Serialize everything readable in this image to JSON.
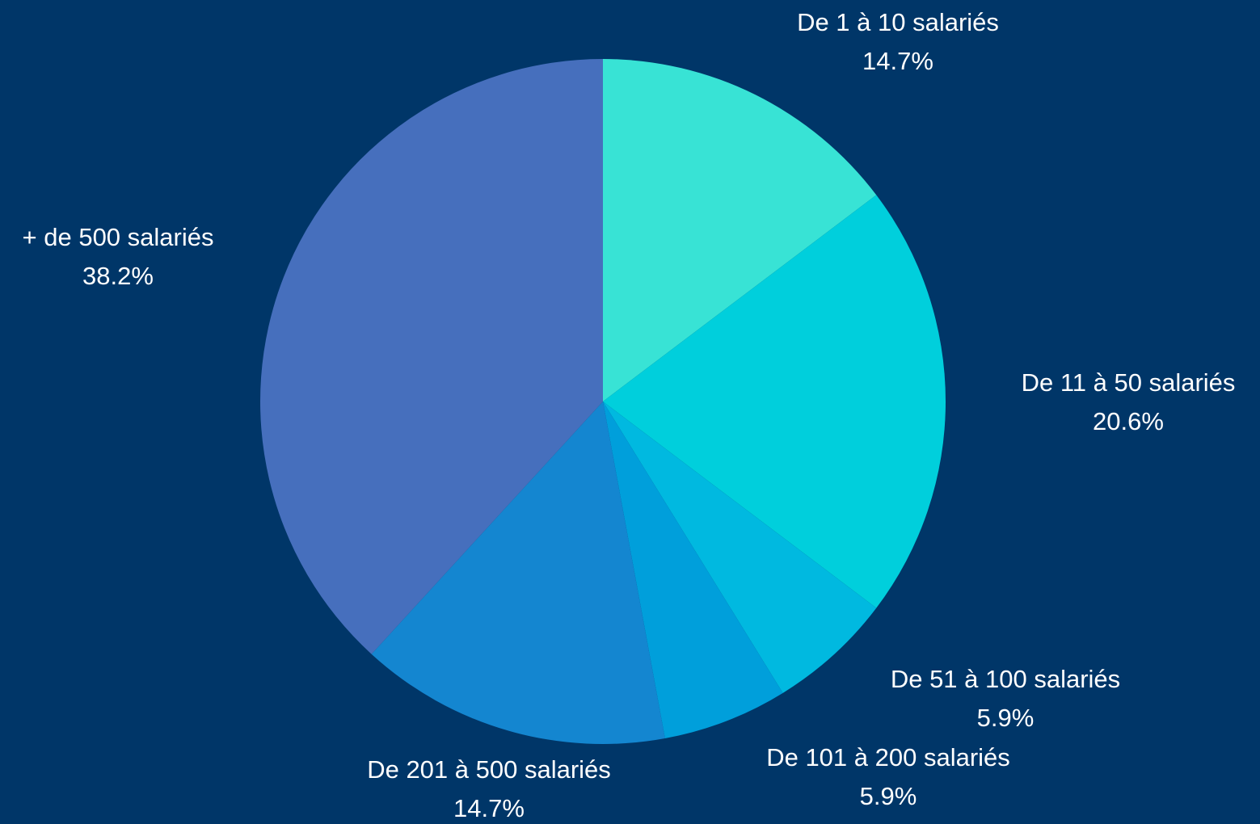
{
  "chart_data": {
    "type": "pie",
    "categories": [
      "De 1 à 10 salariés",
      "De 11 à 50 salariés",
      "De 51 à 100 salariés",
      "De 101 à 200 salariés",
      "De 201 à 500 salariés",
      "+ de 500 salariés"
    ],
    "values": [
      14.7,
      20.6,
      5.9,
      5.9,
      14.7,
      38.2
    ],
    "value_labels": [
      "14.7%",
      "20.6%",
      "5.9%",
      "5.9%",
      "14.7%",
      "38.2%"
    ],
    "colors": [
      "#38e3d5",
      "#00cfdc",
      "#00b9e0",
      "#009fdb",
      "#1486d0",
      "#466fbd"
    ]
  }
}
